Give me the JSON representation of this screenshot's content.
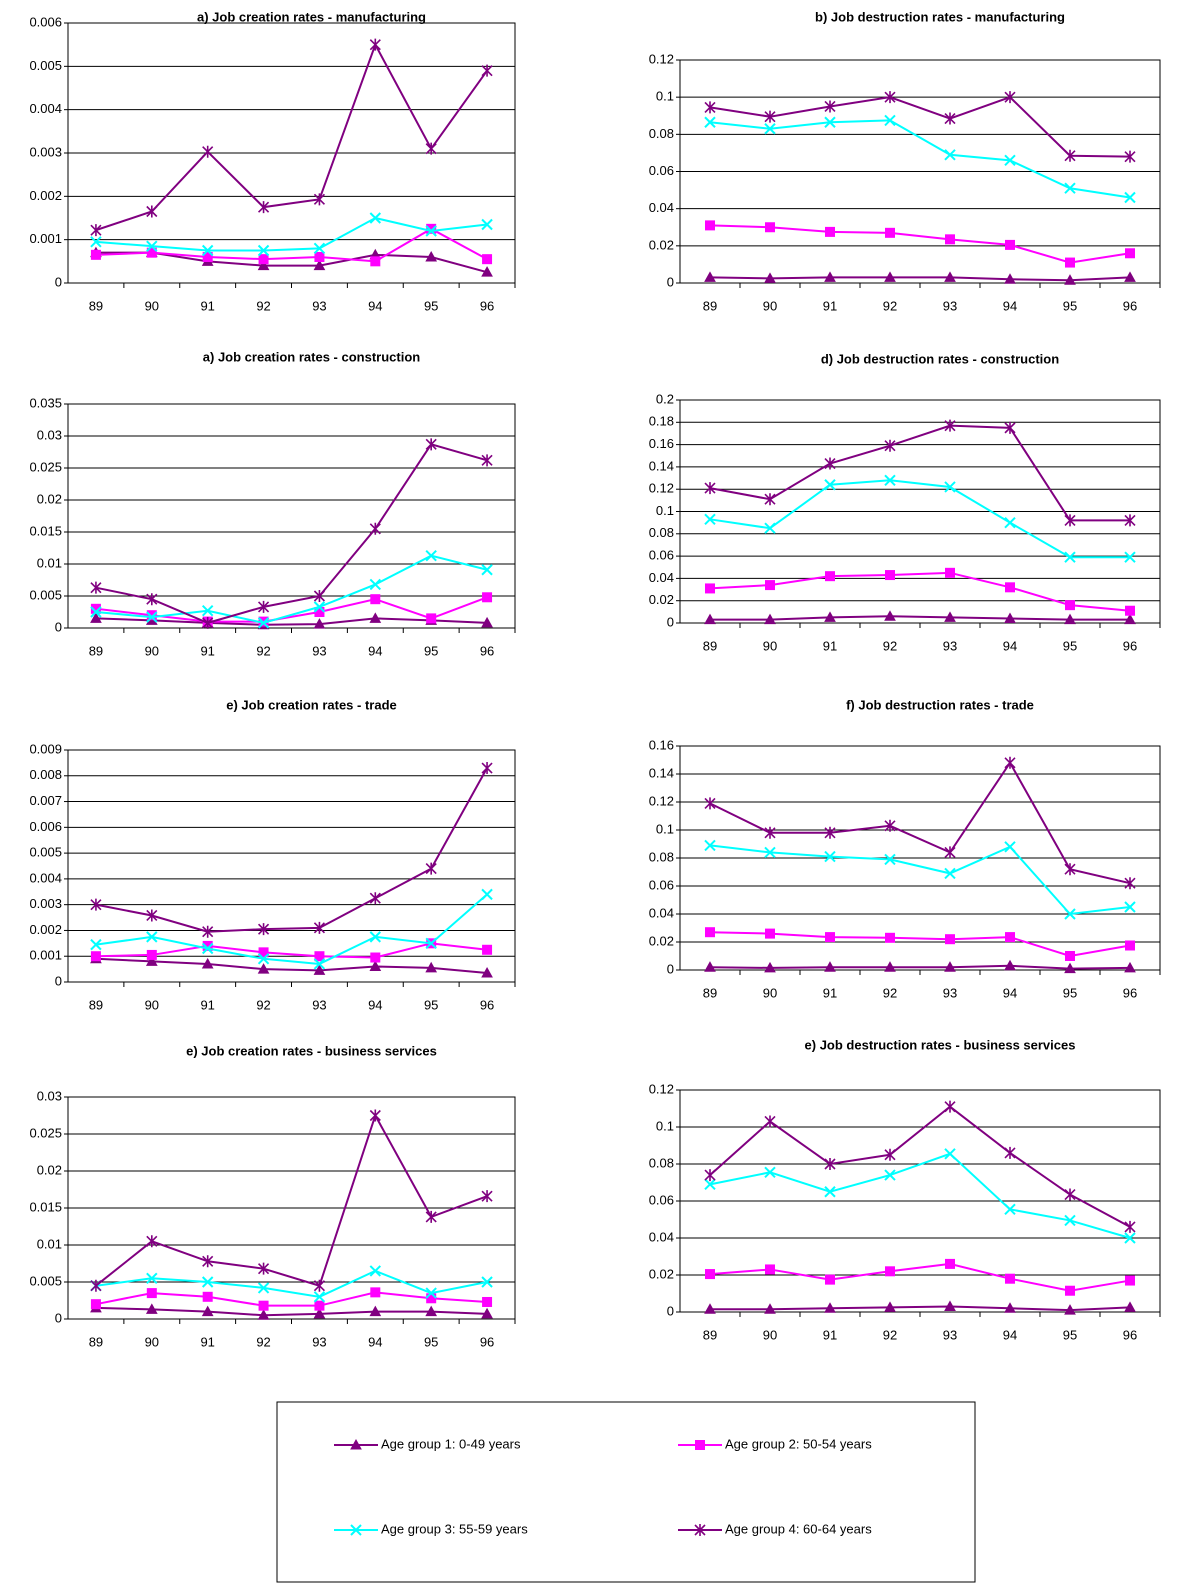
{
  "legend": [
    {
      "name": "Age group 1: 0-49 years",
      "color": "#800080",
      "marker": "triangle"
    },
    {
      "name": "Age group 2: 50-54 years",
      "color": "#ff00ff",
      "marker": "square"
    },
    {
      "name": "Age group 3: 55-59 years",
      "color": "#00ffff",
      "marker": "x"
    },
    {
      "name": "Age group 4: 60-64 years",
      "color": "#800080",
      "marker": "star"
    }
  ],
  "chart_data": [
    {
      "type": "line",
      "title": "a) Job creation rates - manufacturing",
      "categories": [
        "89",
        "90",
        "91",
        "92",
        "93",
        "94",
        "95",
        "96"
      ],
      "ylim": [
        0,
        0.006
      ],
      "yticks": [
        0,
        0.001,
        0.002,
        0.003,
        0.004,
        0.005,
        0.006
      ],
      "grid": true,
      "series": [
        {
          "values": [
            0.0007,
            0.0007,
            0.0005,
            0.0004,
            0.0004,
            0.00065,
            0.0006,
            0.00025
          ]
        },
        {
          "values": [
            0.00065,
            0.0007,
            0.0006,
            0.00055,
            0.0006,
            0.0005,
            0.00125,
            0.00055
          ]
        },
        {
          "values": [
            0.00095,
            0.00085,
            0.00075,
            0.00075,
            0.0008,
            0.0015,
            0.0012,
            0.00135
          ]
        },
        {
          "values": [
            0.00122,
            0.00165,
            0.00303,
            0.00175,
            0.00193,
            0.0055,
            0.0031,
            0.0049
          ]
        }
      ]
    },
    {
      "type": "line",
      "title": "b) Job destruction rates - manufacturing",
      "categories": [
        "89",
        "90",
        "91",
        "92",
        "93",
        "94",
        "95",
        "96"
      ],
      "ylim": [
        0,
        0.12
      ],
      "yticks": [
        0,
        0.02,
        0.04,
        0.06,
        0.08,
        0.1,
        0.12
      ],
      "grid": true,
      "series": [
        {
          "values": [
            0.003,
            0.0025,
            0.003,
            0.003,
            0.003,
            0.002,
            0.0015,
            0.003
          ]
        },
        {
          "values": [
            0.031,
            0.03,
            0.0275,
            0.027,
            0.0235,
            0.0205,
            0.011,
            0.016
          ]
        },
        {
          "values": [
            0.0865,
            0.083,
            0.0865,
            0.0875,
            0.069,
            0.066,
            0.051,
            0.046
          ]
        },
        {
          "values": [
            0.0945,
            0.0895,
            0.095,
            0.1,
            0.0885,
            0.1,
            0.0685,
            0.068
          ]
        }
      ]
    },
    {
      "type": "line",
      "title": "a) Job creation rates - construction",
      "categories": [
        "89",
        "90",
        "91",
        "92",
        "93",
        "94",
        "95",
        "96"
      ],
      "ylim": [
        0,
        0.035
      ],
      "yticks": [
        0,
        0.005,
        0.01,
        0.015,
        0.02,
        0.025,
        0.03,
        0.035
      ],
      "grid": true,
      "series": [
        {
          "values": [
            0.0015,
            0.0012,
            0.0008,
            0.0005,
            0.0006,
            0.0015,
            0.0012,
            0.0008
          ]
        },
        {
          "values": [
            0.003,
            0.002,
            0.001,
            0.001,
            0.0025,
            0.0045,
            0.0015,
            0.0048
          ]
        },
        {
          "values": [
            0.0025,
            0.0017,
            0.0027,
            0.0008,
            0.0033,
            0.0068,
            0.0113,
            0.0091
          ]
        },
        {
          "values": [
            0.0063,
            0.0045,
            0.0008,
            0.0033,
            0.005,
            0.0155,
            0.0287,
            0.0262
          ]
        }
      ]
    },
    {
      "type": "line",
      "title": "d) Job destruction rates - construction",
      "categories": [
        "89",
        "90",
        "91",
        "92",
        "93",
        "94",
        "95",
        "96"
      ],
      "ylim": [
        0,
        0.2
      ],
      "yticks": [
        0,
        0.02,
        0.04,
        0.06,
        0.08,
        0.1,
        0.12,
        0.14,
        0.16,
        0.18,
        0.2
      ],
      "grid": true,
      "series": [
        {
          "values": [
            0.003,
            0.003,
            0.005,
            0.006,
            0.005,
            0.004,
            0.003,
            0.003
          ]
        },
        {
          "values": [
            0.031,
            0.034,
            0.042,
            0.043,
            0.045,
            0.032,
            0.016,
            0.011
          ]
        },
        {
          "values": [
            0.093,
            0.085,
            0.124,
            0.128,
            0.122,
            0.09,
            0.059,
            0.059
          ]
        },
        {
          "values": [
            0.121,
            0.111,
            0.143,
            0.159,
            0.177,
            0.175,
            0.092,
            0.092
          ]
        }
      ]
    },
    {
      "type": "line",
      "title": "e) Job creation rates - trade",
      "categories": [
        "89",
        "90",
        "91",
        "92",
        "93",
        "94",
        "95",
        "96"
      ],
      "ylim": [
        0,
        0.009
      ],
      "yticks": [
        0,
        0.001,
        0.002,
        0.003,
        0.004,
        0.005,
        0.006,
        0.007,
        0.008,
        0.009
      ],
      "grid": true,
      "series": [
        {
          "values": [
            0.0009,
            0.0008,
            0.0007,
            0.0005,
            0.00045,
            0.0006,
            0.00055,
            0.00035
          ]
        },
        {
          "values": [
            0.001,
            0.00105,
            0.0014,
            0.00115,
            0.001,
            0.00095,
            0.0015,
            0.00125
          ]
        },
        {
          "values": [
            0.00145,
            0.00175,
            0.0013,
            0.0009,
            0.0007,
            0.00175,
            0.0015,
            0.0034
          ]
        },
        {
          "values": [
            0.003,
            0.00258,
            0.00195,
            0.00205,
            0.0021,
            0.00325,
            0.0044,
            0.0083
          ]
        }
      ]
    },
    {
      "type": "line",
      "title": "f) Job destruction rates - trade",
      "categories": [
        "89",
        "90",
        "91",
        "92",
        "93",
        "94",
        "95",
        "96"
      ],
      "ylim": [
        0,
        0.16
      ],
      "yticks": [
        0,
        0.02,
        0.04,
        0.06,
        0.08,
        0.1,
        0.12,
        0.14,
        0.16
      ],
      "grid": true,
      "series": [
        {
          "values": [
            0.002,
            0.0015,
            0.002,
            0.002,
            0.002,
            0.003,
            0.001,
            0.0015
          ]
        },
        {
          "values": [
            0.027,
            0.026,
            0.0235,
            0.023,
            0.022,
            0.0235,
            0.01,
            0.0175
          ]
        },
        {
          "values": [
            0.089,
            0.084,
            0.081,
            0.079,
            0.069,
            0.088,
            0.04,
            0.045
          ]
        },
        {
          "values": [
            0.119,
            0.098,
            0.098,
            0.103,
            0.084,
            0.148,
            0.072,
            0.062
          ]
        }
      ]
    },
    {
      "type": "line",
      "title": "e) Job creation rates - business services",
      "categories": [
        "89",
        "90",
        "91",
        "92",
        "93",
        "94",
        "95",
        "96"
      ],
      "ylim": [
        0,
        0.03
      ],
      "yticks": [
        0,
        0.005,
        0.01,
        0.015,
        0.02,
        0.025,
        0.03
      ],
      "grid": true,
      "series": [
        {
          "values": [
            0.0015,
            0.0013,
            0.001,
            0.0005,
            0.0007,
            0.001,
            0.001,
            0.0007
          ]
        },
        {
          "values": [
            0.002,
            0.0035,
            0.003,
            0.0018,
            0.0018,
            0.0036,
            0.0028,
            0.0023
          ]
        },
        {
          "values": [
            0.0045,
            0.0055,
            0.005,
            0.0042,
            0.003,
            0.0065,
            0.0035,
            0.005
          ]
        },
        {
          "values": [
            0.0045,
            0.0105,
            0.0078,
            0.0068,
            0.0045,
            0.0275,
            0.0138,
            0.0166
          ]
        }
      ]
    },
    {
      "type": "line",
      "title": "e) Job destruction rates - business services",
      "categories": [
        "89",
        "90",
        "91",
        "92",
        "93",
        "94",
        "95",
        "96"
      ],
      "ylim": [
        0,
        0.12
      ],
      "yticks": [
        0,
        0.02,
        0.04,
        0.06,
        0.08,
        0.1,
        0.12
      ],
      "grid": true,
      "series": [
        {
          "values": [
            0.0015,
            0.0015,
            0.002,
            0.0025,
            0.003,
            0.002,
            0.001,
            0.0025
          ]
        },
        {
          "values": [
            0.0205,
            0.023,
            0.0175,
            0.022,
            0.026,
            0.018,
            0.0115,
            0.017
          ]
        },
        {
          "values": [
            0.069,
            0.0755,
            0.065,
            0.074,
            0.0855,
            0.0555,
            0.0495,
            0.04
          ]
        },
        {
          "values": [
            0.074,
            0.103,
            0.08,
            0.085,
            0.111,
            0.086,
            0.0635,
            0.046
          ]
        }
      ]
    }
  ]
}
